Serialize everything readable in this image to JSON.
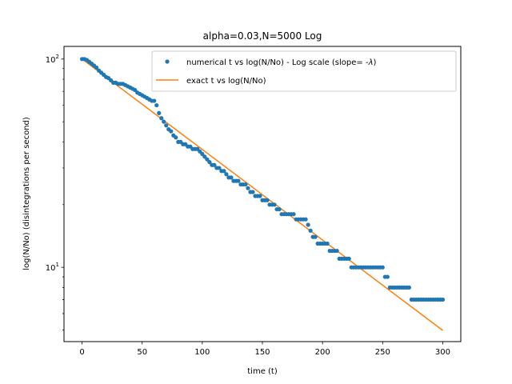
{
  "chart_data": {
    "type": "scatter",
    "title": "alpha=0.03,N=5000 Log",
    "xlabel": "time (t)",
    "ylabel": "log(N/No) (disintegrations per second)",
    "xlim": [
      -15,
      315
    ],
    "ylim": [
      4.4,
      115
    ],
    "yscale": "log",
    "grid": false,
    "legend_position": "top-right",
    "x_ticks": [
      0,
      50,
      100,
      150,
      200,
      250,
      300
    ],
    "x_tick_labels": [
      "0",
      "50",
      "100",
      "150",
      "200",
      "250",
      "300"
    ],
    "y_ticks": [
      10,
      100
    ],
    "y_tick_labels": [
      "10^1",
      "10^2"
    ],
    "y_tick_base": "10",
    "y_tick_exponents": [
      "1",
      "2"
    ],
    "series": [
      {
        "name": "numerical t vs log(N/No) - Log scale (slope= -λ)",
        "legend_main": "numerical t vs log(N/No) - Log scale (slope= -",
        "legend_symbol": "λ",
        "legend_tail": ")",
        "kind": "scatter",
        "color": "#1f77b4",
        "x": [
          0,
          2,
          4,
          6,
          8,
          10,
          12,
          14,
          16,
          18,
          20,
          22,
          24,
          26,
          28,
          30,
          32,
          34,
          36,
          38,
          40,
          42,
          44,
          46,
          48,
          50,
          52,
          54,
          56,
          58,
          60,
          62,
          64,
          66,
          68,
          70,
          72,
          74,
          76,
          78,
          80,
          82,
          84,
          86,
          88,
          90,
          92,
          94,
          96,
          98,
          100,
          102,
          104,
          106,
          108,
          110,
          112,
          114,
          116,
          118,
          120,
          122,
          124,
          126,
          128,
          130,
          132,
          134,
          136,
          138,
          140,
          142,
          144,
          146,
          148,
          150,
          152,
          154,
          156,
          158,
          160,
          162,
          164,
          166,
          168,
          170,
          172,
          174,
          176,
          178,
          180,
          182,
          184,
          186,
          188,
          190,
          192,
          194,
          196,
          198,
          200,
          202,
          204,
          206,
          208,
          210,
          212,
          214,
          216,
          218,
          220,
          222,
          224,
          226,
          228,
          230,
          232,
          234,
          236,
          238,
          240,
          242,
          244,
          246,
          248,
          250,
          252,
          254,
          256,
          258,
          260,
          262,
          264,
          266,
          268,
          270,
          272,
          274,
          276,
          278,
          280,
          282,
          284,
          286,
          288,
          290,
          292,
          294,
          296,
          298,
          300
        ],
        "y": [
          100,
          100,
          99,
          97,
          95,
          93,
          91,
          88,
          86,
          84,
          82,
          81,
          79,
          77,
          77,
          76,
          76,
          76,
          75,
          74,
          73,
          72,
          71,
          69,
          68,
          67,
          66,
          65,
          64,
          63,
          63,
          60,
          55,
          52,
          50,
          48,
          46,
          45,
          43,
          42,
          40,
          40,
          39,
          39,
          38,
          38,
          37,
          37,
          37,
          36,
          35,
          34,
          33,
          32,
          31,
          31,
          30,
          30,
          29,
          29,
          28,
          27,
          27,
          26,
          26,
          26,
          25,
          25,
          25,
          24,
          23,
          23,
          22,
          22,
          22,
          21,
          21,
          21,
          20,
          20,
          20,
          19,
          19,
          18,
          18,
          18,
          18,
          18,
          18,
          17,
          17,
          17,
          17,
          17,
          16,
          15,
          14,
          14,
          13,
          13,
          13,
          13,
          13,
          12,
          12,
          12,
          12,
          11,
          11,
          11,
          11,
          11,
          10,
          10,
          10,
          10,
          10,
          10,
          10,
          10,
          10,
          10,
          10,
          10,
          10,
          10,
          9,
          9,
          8,
          8,
          8,
          8,
          8,
          8,
          8,
          8,
          8,
          7,
          7,
          7,
          7,
          7,
          7,
          7,
          7,
          7,
          7,
          7,
          7,
          7,
          7
        ]
      },
      {
        "name": "exact t vs log(N/No)",
        "kind": "line",
        "color": "#ff7f0e",
        "x": [
          0,
          300
        ],
        "y": [
          100,
          4.98
        ]
      }
    ]
  }
}
